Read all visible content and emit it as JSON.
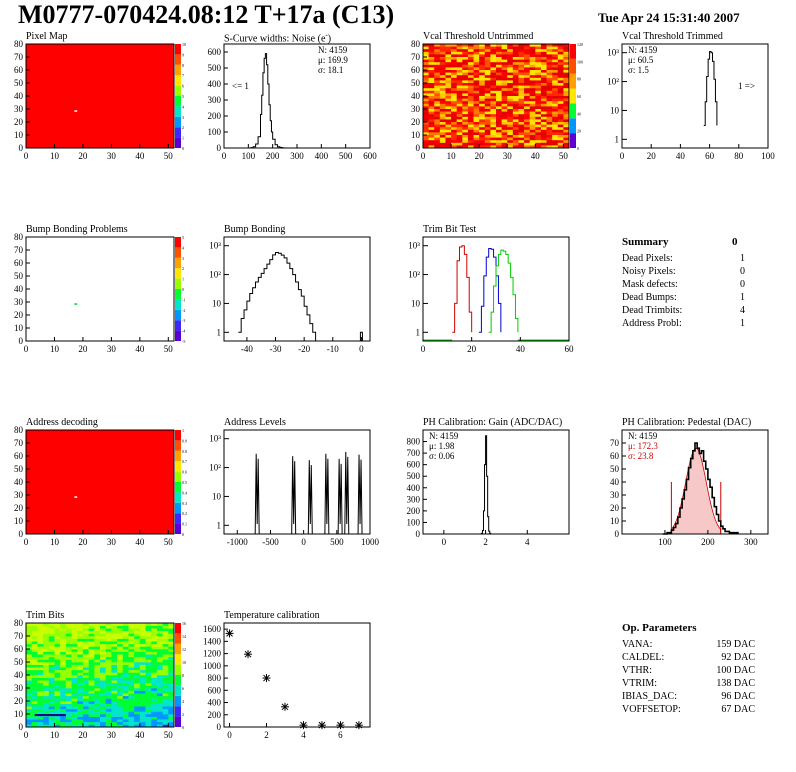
{
  "header": {
    "title": "M0777-070424.08:12 T+17a (C13)",
    "date": "Tue Apr 24 15:31:40 2007"
  },
  "colors": {
    "map_red": "#ff0000",
    "palette": [
      "#5a00d2",
      "#3c28ff",
      "#0096ff",
      "#00e6c8",
      "#00ff32",
      "#96ff00",
      "#ffe600",
      "#ffa000",
      "#ff5000",
      "#ff0000"
    ],
    "trim_red": "#d40000",
    "trim_blue": "#0000d4",
    "trim_green": "#00cc00",
    "fit_red": "#cc0000"
  },
  "chart_data": [
    {
      "id": "pixel-map",
      "type": "heatmap",
      "title": "Pixel Map",
      "xlim": [
        0,
        52
      ],
      "ylim": [
        0,
        80
      ],
      "xticks": [
        0,
        10,
        20,
        30,
        40,
        50
      ],
      "yticks": [
        0,
        10,
        20,
        30,
        40,
        50,
        60,
        70,
        80
      ],
      "fill": "uniform-red",
      "special_pixels": [
        {
          "x": 17,
          "y": 28,
          "color": "#ffffff"
        }
      ],
      "zlim": [
        0,
        10
      ],
      "zticks": [
        0,
        1,
        2,
        3,
        4,
        5,
        6,
        7,
        8,
        9,
        10
      ]
    },
    {
      "id": "scurve",
      "type": "line",
      "title": "S-Curve widths: Noise (e",
      "title_sup": "-",
      "title_end": ")",
      "xlim": [
        0,
        600
      ],
      "ylim": [
        0,
        650
      ],
      "xticks": [
        0,
        100,
        200,
        300,
        400,
        500,
        600
      ],
      "yticks": [
        0,
        100,
        200,
        300,
        400,
        500,
        600
      ],
      "stats": {
        "N": "N: 4159",
        "mu": "μ: 169.9",
        "sigma": "σ: 18.1"
      },
      "annotation": "<= 1",
      "x": [
        100,
        110,
        120,
        130,
        140,
        150,
        155,
        160,
        165,
        170,
        175,
        180,
        185,
        190,
        195,
        200,
        210,
        220,
        230,
        240,
        250
      ],
      "y": [
        0,
        2,
        8,
        25,
        70,
        210,
        330,
        470,
        560,
        590,
        520,
        400,
        270,
        170,
        100,
        55,
        20,
        8,
        3,
        1,
        0
      ]
    },
    {
      "id": "vcal-untrimmed",
      "type": "heatmap",
      "title": "Vcal Threshold Untrimmed",
      "xlim": [
        0,
        52
      ],
      "ylim": [
        0,
        80
      ],
      "xticks": [
        0,
        10,
        20,
        30,
        40,
        50
      ],
      "yticks": [
        0,
        10,
        20,
        30,
        40,
        50,
        60,
        70,
        80
      ],
      "fill": "noisy-warm",
      "zlim": [
        0,
        140
      ],
      "zticks": [
        0,
        20,
        40,
        60,
        80,
        100,
        120
      ]
    },
    {
      "id": "vcal-trimmed",
      "type": "line",
      "title": "Vcal Threshold Trimmed",
      "log_y": true,
      "xlim": [
        0,
        100
      ],
      "ylim": [
        0.5,
        2000
      ],
      "xticks": [
        0,
        20,
        40,
        60,
        80,
        100
      ],
      "ytick_labels": [
        "1",
        "10",
        "10²",
        "10³"
      ],
      "stats": {
        "N": "N: 4159",
        "mu": "μ: 60.5",
        "sigma": "σ:  1.5"
      },
      "annotation": "1 =>",
      "x": [
        56,
        57,
        58,
        59,
        60,
        61,
        62,
        63,
        64,
        65
      ],
      "y": [
        3,
        20,
        150,
        600,
        1100,
        1000,
        500,
        120,
        20,
        3
      ]
    },
    {
      "id": "bump-problems",
      "type": "heatmap",
      "title": "Bump Bonding Problems",
      "xlim": [
        0,
        52
      ],
      "ylim": [
        0,
        80
      ],
      "xticks": [
        0,
        10,
        20,
        30,
        40,
        50
      ],
      "yticks": [
        0,
        10,
        20,
        30,
        40,
        50,
        60,
        70,
        80
      ],
      "fill": "white",
      "special_pixels": [
        {
          "x": 17,
          "y": 28,
          "color": "#00cc44"
        }
      ],
      "zlim": [
        -5,
        5
      ],
      "zticks": [
        -5,
        -4,
        -3,
        -2,
        -1,
        0,
        1,
        2,
        3,
        4,
        5
      ]
    },
    {
      "id": "bump-bonding",
      "type": "line",
      "title": "Bump Bonding",
      "log_y": true,
      "xlim": [
        -48,
        3
      ],
      "ylim": [
        0.5,
        2000
      ],
      "xticks": [
        -40,
        -30,
        -20,
        -10,
        0
      ],
      "ytick_labels": [
        "1",
        "10",
        "10²",
        "10³"
      ],
      "x": [
        -43,
        -42,
        -41,
        -40,
        -39,
        -38,
        -37,
        -36,
        -35,
        -34,
        -33,
        -32,
        -31,
        -30,
        -29,
        -28,
        -27,
        -26,
        -25,
        -24,
        -23,
        -22,
        -21,
        -20,
        -19,
        -18,
        -17,
        -16
      ],
      "y": [
        1,
        3,
        6,
        12,
        22,
        35,
        55,
        80,
        110,
        160,
        230,
        330,
        480,
        580,
        550,
        470,
        380,
        250,
        160,
        100,
        55,
        30,
        18,
        8,
        4,
        2,
        1,
        0.5
      ],
      "outlier_x": 0,
      "outlier_y": 1
    },
    {
      "id": "trim-bit-test",
      "type": "line",
      "title": "Trim Bit Test",
      "log_y": true,
      "xlim": [
        0,
        60
      ],
      "ylim": [
        0.5,
        2000
      ],
      "xticks": [
        0,
        20,
        40,
        60
      ],
      "ytick_labels": [
        "1",
        "10",
        "10²",
        "10³"
      ],
      "series": [
        {
          "color_key": "trim_red",
          "x": [
            12,
            13,
            14,
            15,
            16,
            17,
            18,
            19,
            20
          ],
          "y": [
            1,
            10,
            300,
            900,
            1000,
            500,
            80,
            5,
            1
          ]
        },
        {
          "color_key": "trim_blue",
          "x": [
            23,
            24,
            25,
            26,
            27,
            28,
            29,
            30,
            31,
            32
          ],
          "y": [
            1,
            8,
            90,
            400,
            800,
            750,
            400,
            90,
            10,
            1
          ]
        },
        {
          "color_key": "trim_green",
          "x": [
            27,
            28,
            29,
            30,
            31,
            32,
            33,
            34,
            35,
            36,
            37,
            38,
            39
          ],
          "y": [
            1,
            5,
            40,
            200,
            500,
            700,
            650,
            500,
            250,
            80,
            20,
            3,
            1
          ]
        }
      ]
    },
    {
      "id": "address-decoding",
      "type": "heatmap",
      "title": "Address decoding",
      "xlim": [
        0,
        52
      ],
      "ylim": [
        0,
        80
      ],
      "xticks": [
        0,
        10,
        20,
        30,
        40,
        50
      ],
      "yticks": [
        0,
        10,
        20,
        30,
        40,
        50,
        60,
        70,
        80
      ],
      "fill": "uniform-red",
      "special_pixels": [
        {
          "x": 17,
          "y": 28,
          "color": "#ffffff"
        }
      ],
      "zlim": [
        0,
        1
      ],
      "zticks": [
        "0",
        "0.1",
        "0.2",
        "0.3",
        "0.4",
        "0.5",
        "0.6",
        "0.7",
        "0.8",
        "0.9",
        "1"
      ]
    },
    {
      "id": "address-levels",
      "type": "line",
      "title": "Address Levels",
      "log_y": true,
      "xlim": [
        -1200,
        1000
      ],
      "ylim": [
        0.5,
        2000
      ],
      "xticks": [
        -1000,
        -500,
        0,
        500,
        1000
      ],
      "ytick_labels": [
        "1",
        "10",
        "10²",
        "10³"
      ],
      "peaks": [
        -700,
        -150,
        100,
        350,
        550,
        650,
        850
      ],
      "peak_heights": [
        300,
        250,
        180,
        300,
        200,
        350,
        280
      ]
    },
    {
      "id": "ph-gain",
      "type": "line",
      "title": "PH Calibration: Gain (ADC/DAC)",
      "xlim": [
        -1,
        6
      ],
      "ylim": [
        0,
        900
      ],
      "xticks": [
        0,
        2,
        4
      ],
      "yticks": [
        0,
        100,
        200,
        300,
        400,
        500,
        600,
        700,
        800
      ],
      "stats": {
        "N": "N: 4159",
        "mu": "μ: 1.98",
        "sigma": "σ: 0.06"
      },
      "x": [
        1.75,
        1.8,
        1.85,
        1.9,
        1.95,
        2.0,
        2.05,
        2.1,
        2.15,
        2.2,
        2.25
      ],
      "y": [
        0,
        5,
        30,
        200,
        600,
        850,
        500,
        150,
        25,
        5,
        0
      ]
    },
    {
      "id": "ph-pedestal",
      "type": "line",
      "title": "PH Calibration: Pedestal (DAC)",
      "xlim": [
        0,
        340
      ],
      "ylim": [
        0,
        80
      ],
      "xticks": [
        100,
        200,
        300
      ],
      "yticks": [
        0,
        10,
        20,
        30,
        40,
        50,
        60,
        70
      ],
      "stats": {
        "N": "N: 4159",
        "mu": "μ: 172.3",
        "sigma": "σ: 23.8"
      },
      "fit_mean": 172.3,
      "fit_sigma": 23.8,
      "fit_amp": 66,
      "fit_range": [
        115,
        230
      ],
      "x": [
        95,
        105,
        115,
        120,
        125,
        130,
        135,
        140,
        145,
        150,
        155,
        160,
        165,
        170,
        175,
        180,
        185,
        190,
        195,
        200,
        205,
        210,
        215,
        220,
        225,
        230,
        235,
        240,
        250,
        260,
        270
      ],
      "y": [
        0,
        1,
        3,
        5,
        8,
        13,
        20,
        27,
        34,
        42,
        51,
        58,
        64,
        70,
        66,
        62,
        64,
        56,
        50,
        42,
        36,
        28,
        21,
        15,
        10,
        6,
        4,
        2,
        1,
        1,
        0
      ]
    },
    {
      "id": "trim-bits",
      "type": "heatmap",
      "title": "Trim Bits",
      "xlim": [
        0,
        52
      ],
      "ylim": [
        0,
        80
      ],
      "xticks": [
        0,
        10,
        20,
        30,
        40,
        50
      ],
      "yticks": [
        0,
        10,
        20,
        30,
        40,
        50,
        60,
        70,
        80
      ],
      "fill": "trim-gradient",
      "zlim": [
        0,
        16
      ],
      "zticks": [
        0,
        2,
        4,
        6,
        8,
        10,
        12,
        14,
        16
      ]
    },
    {
      "id": "temperature",
      "type": "scatter",
      "title": "Temperature calibration",
      "xlim": [
        -0.3,
        7.6
      ],
      "ylim": [
        0,
        1700
      ],
      "xticks": [
        0,
        2,
        4,
        6
      ],
      "yticks": [
        0,
        200,
        400,
        600,
        800,
        1000,
        1200,
        1400,
        1600
      ],
      "x": [
        0,
        1,
        2,
        3,
        4,
        5,
        6,
        7
      ],
      "y": [
        1530,
        1190,
        800,
        330,
        30,
        30,
        30,
        30
      ]
    }
  ],
  "summary": {
    "title": "Summary",
    "total": "0",
    "rows": [
      {
        "label": "Dead Pixels:",
        "value": "1"
      },
      {
        "label": "Noisy Pixels:",
        "value": "0"
      },
      {
        "label": "Mask defects:",
        "value": "0"
      },
      {
        "label": "Dead Bumps:",
        "value": "1"
      },
      {
        "label": "Dead Trimbits:",
        "value": "4"
      },
      {
        "label": "Address Probl:",
        "value": "1"
      }
    ]
  },
  "op_params": {
    "title": "Op. Parameters",
    "rows": [
      {
        "label": "VANA:",
        "value": "159 DAC"
      },
      {
        "label": "CALDEL:",
        "value": "92 DAC"
      },
      {
        "label": "VTHR:",
        "value": "100 DAC"
      },
      {
        "label": "VTRIM:",
        "value": "138 DAC"
      },
      {
        "label": "IBIAS_DAC:",
        "value": "96 DAC"
      },
      {
        "label": "VOFFSETOP:",
        "value": "67 DAC"
      }
    ]
  }
}
